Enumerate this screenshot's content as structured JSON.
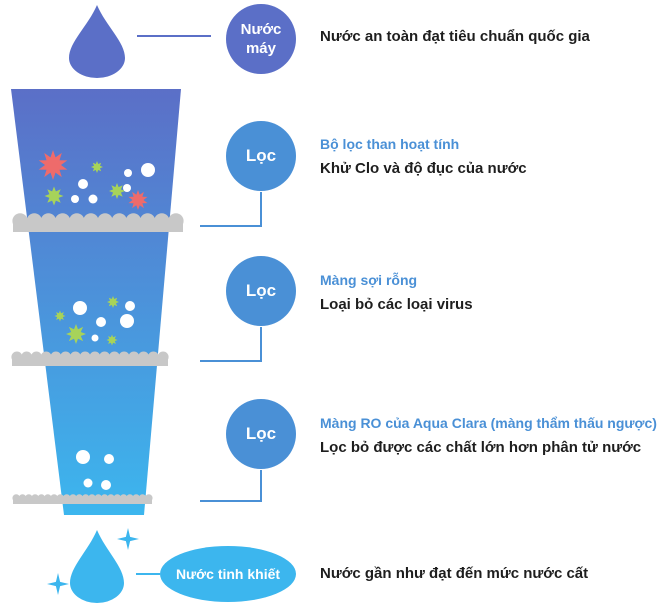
{
  "source": {
    "label_line1": "Nước",
    "label_line2": "máy",
    "description": "Nước an toàn đạt tiêu chuẩn quốc gia"
  },
  "stages": [
    {
      "badge": "Lọc",
      "title": "Bộ lọc than hoạt tính",
      "description": "Khử Clo và độ đục của nước"
    },
    {
      "badge": "Lọc",
      "title": "Màng sợi rỗng",
      "description": "Loại bỏ các loại virus"
    },
    {
      "badge": "Lọc",
      "title": "Màng RO của Aqua Clara (màng thẩm thấu ngược)",
      "description": "Lọc bỏ được các chất lớn hơn phân tử nước"
    }
  ],
  "output": {
    "label": "Nước tinh khiết",
    "description": "Nước gần như đạt đến mức nước cất"
  },
  "colors": {
    "source_drop": "#5b6fc7",
    "funnel_top": "#5b6fc7",
    "funnel_bottom": "#3cb6ee",
    "filter_badge": "#4a90d6",
    "output_badge": "#3cb6ee",
    "filter_layer": "#c8c8c8",
    "connector_line": "#4a90d6",
    "contaminant_red": "#ee6b6b",
    "contaminant_green": "#a7d35a",
    "particle": "#ffffff"
  }
}
